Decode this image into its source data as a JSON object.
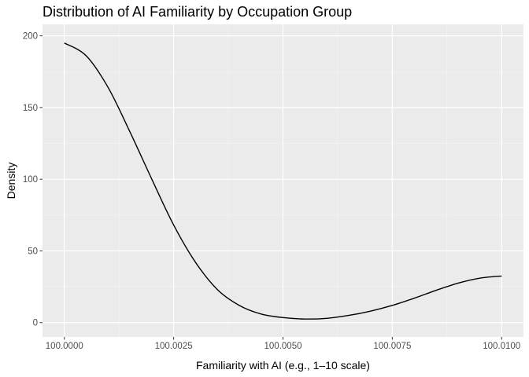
{
  "chart_data": {
    "type": "line",
    "title": "Distribution of AI Familiarity by Occupation Group",
    "xlabel": "Familiarity with AI (e.g., 1–10 scale)",
    "ylabel": "Density",
    "xlim": [
      99.9995,
      100.0105
    ],
    "ylim": [
      -10,
      208
    ],
    "x_ticks": [
      100.0,
      100.0025,
      100.005,
      100.0075,
      100.01
    ],
    "x_tick_labels": [
      "100.0000",
      "100.0025",
      "100.0050",
      "100.0075",
      "100.0100"
    ],
    "y_ticks": [
      0,
      50,
      100,
      150,
      200
    ],
    "y_tick_labels": [
      "0",
      "50",
      "100",
      "150",
      "200"
    ],
    "grid": true,
    "panel_background": "#ebebeb",
    "line_color": "#000000",
    "series": [
      {
        "x": [
          100.0,
          100.0005,
          100.001,
          100.0015,
          100.002,
          100.0025,
          100.003,
          100.0035,
          100.004,
          100.0045,
          100.005,
          100.0055,
          100.006,
          100.0065,
          100.007,
          100.0075,
          100.008,
          100.0085,
          100.009,
          100.0095,
          100.01
        ],
        "y": [
          195,
          186,
          164,
          133,
          100,
          68,
          42,
          23,
          12,
          6,
          3.5,
          2.5,
          3,
          5,
          8,
          12,
          17,
          22.5,
          27.5,
          31,
          32.5
        ]
      }
    ]
  }
}
